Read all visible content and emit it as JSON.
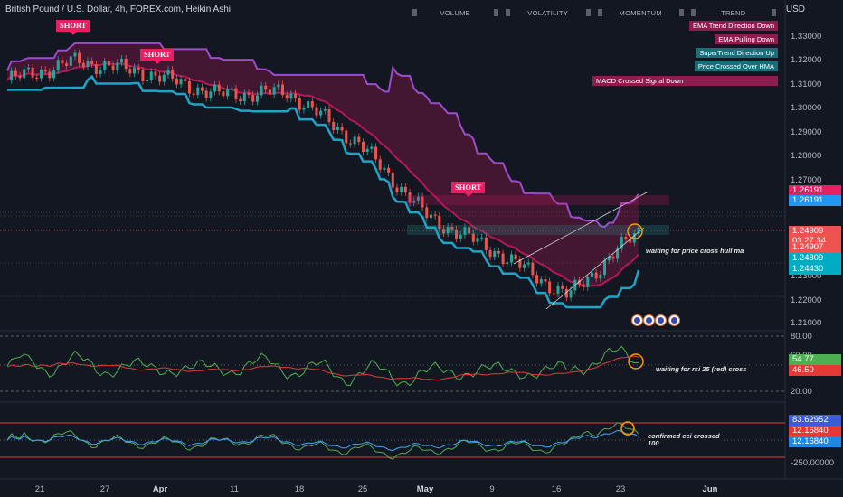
{
  "header": {
    "symbol_title": "British Pound / U.S. Dollar, 4h, FOREX.com, Heikin Ashi",
    "currency": "USD"
  },
  "toolbar": {
    "volume_label": "VOLUME",
    "volatility_label": "VOLATILITY",
    "momentum_label": "MOMENTUM",
    "trend_label": "TREND"
  },
  "signals": {
    "ema_trend": "EMA Trend Direction Down",
    "ema_pulling": "EMA Pulling Down",
    "supertrend": "SuperTrend Direction Up",
    "price_cross": "Price Crossed Over HMA",
    "macd": "MACD Crossed Signal Down"
  },
  "annotations": {
    "short_label": "SHORT",
    "note_price": "waiting for price cross hull ma",
    "note_rsi": "waiting for rsi 25 (red) cross",
    "note_cci_line1": "confirmed cci crossed",
    "note_cci_line2": "100"
  },
  "price_axis": {
    "ticks": [
      "1.33000",
      "1.32000",
      "1.31000",
      "1.30000",
      "1.29000",
      "1.28000",
      "1.27000",
      "1.23000",
      "1.22000",
      "1.21000"
    ],
    "tags": {
      "upper_red": "1.26191",
      "upper_blue": "1.26191",
      "last_price": "1.24909",
      "countdown": "03:27:34",
      "red_low": "1.24907",
      "blue_mid": "1.24809",
      "blue_low": "1.24430"
    }
  },
  "rsi_axis": {
    "ticks": [
      "80.00",
      "60.00",
      "20.00"
    ],
    "tags": {
      "rsi_green": "54.77",
      "rsi_red": "46.50"
    }
  },
  "cci_axis": {
    "ticks": [
      "-250.00000"
    ],
    "tags": {
      "cci_top": "83.62952",
      "cci_red": "12.16840",
      "cci_blue": "12.16840"
    }
  },
  "x_axis": {
    "ticks": [
      "21",
      "27",
      "Apr",
      "11",
      "18",
      "25",
      "May",
      "9",
      "16",
      "23",
      "Jun"
    ],
    "bold_ticks": [
      "Apr",
      "May",
      "Jun"
    ]
  },
  "colors": {
    "background": "#131722",
    "bull": "#26a69a",
    "bear": "#ef5350",
    "ema_band": "#c2185b",
    "supertrend": "#1ba6c9",
    "hma": "#9c4dcc"
  },
  "chart_data": {
    "type": "line",
    "title": "British Pound / U.S. Dollar, 4h, FOREX.com, Heikin Ashi",
    "x": [
      "21",
      "27",
      "Apr",
      "11",
      "18",
      "25",
      "May",
      "9",
      "16",
      "23"
    ],
    "ylim": [
      1.205,
      1.338
    ],
    "series": [
      {
        "name": "",
        "values": [
          1.312,
          1.32,
          1.315,
          1.306,
          1.307,
          1.286,
          1.255,
          1.24,
          1.222,
          1.249
        ]
      }
    ]
  }
}
